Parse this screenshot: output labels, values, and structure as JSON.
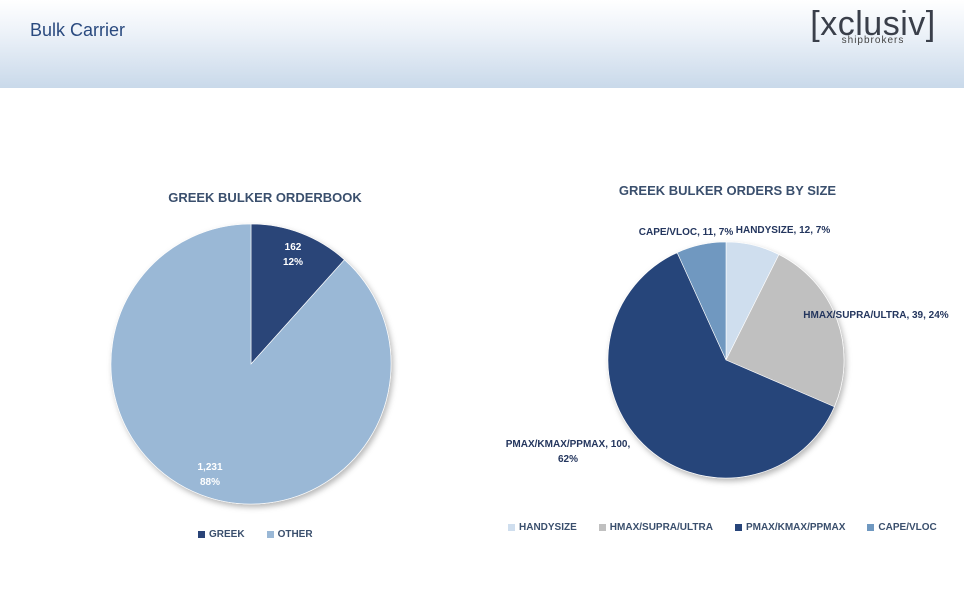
{
  "header": {
    "title": "Bulk Carrier",
    "logo": {
      "word": "[xclusiv]",
      "sub": "shipbrokers"
    }
  },
  "colors": {
    "greek": "#2a4478",
    "other": "#9ab8d6",
    "handysize": "#cfdeee",
    "hmax": "#c0c0c0",
    "pmax": "#28457a",
    "cape": "#6f98c0"
  },
  "chart_data": [
    {
      "type": "pie",
      "title": "GREEK BULKER ORDERBOOK",
      "slices": [
        {
          "name": "GREEK",
          "value": 162,
          "label_value": "162",
          "label_pct": "12%",
          "color": "#2a4478",
          "label_color": "#ffffff"
        },
        {
          "name": "OTHER",
          "value": 1231,
          "label_value": "1,231",
          "label_pct": "88%",
          "color": "#9ab8d6",
          "label_color": "#ffffff"
        }
      ],
      "legend": [
        "GREEK",
        "OTHER"
      ],
      "legend_position": "bottom"
    },
    {
      "type": "pie",
      "title": "GREEK BULKER ORDERS BY SIZE",
      "slices": [
        {
          "name": "HANDYSIZE",
          "value": 12,
          "label": "HANDYSIZE, 12, 7%",
          "color": "#cfdeee"
        },
        {
          "name": "HMAX/SUPRA/ULTRA",
          "value": 39,
          "label": "HMAX/SUPRA/ULTRA, 39, 24%",
          "color": "#c0c0c0"
        },
        {
          "name": "PMAX/KMAX/PPMAX",
          "value": 100,
          "label_line1": "PMAX/KMAX/PPMAX,  100,",
          "label_line2": "62%",
          "color": "#28457a"
        },
        {
          "name": "CAPE/VLOC",
          "value": 11,
          "label": "CAPE/VLOC, 11, 7%",
          "color": "#6f98c0"
        }
      ],
      "legend": [
        "HANDYSIZE",
        "HMAX/SUPRA/ULTRA",
        "PMAX/KMAX/PPMAX",
        "CAPE/VLOC"
      ],
      "legend_position": "bottom"
    }
  ]
}
